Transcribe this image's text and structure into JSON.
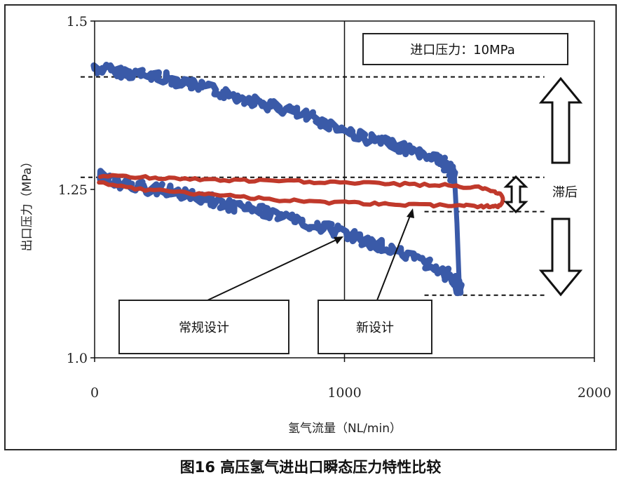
{
  "caption": "图16 高压氢气进出口瞬态压力特性比较",
  "chart_data": {
    "type": "line",
    "title": "",
    "xlabel": "氢气流量（NL/min）",
    "ylabel": "出口压力（MPa）",
    "xlim": [
      0,
      2000
    ],
    "ylim": [
      1.0,
      1.5
    ],
    "x_ticks": [
      {
        "value": 0,
        "label": "0"
      },
      {
        "value": 1000,
        "label": "1000"
      },
      {
        "value": 2000,
        "label": "2000"
      }
    ],
    "y_ticks": [
      {
        "value": 1.0,
        "label": "1.0"
      },
      {
        "value": 1.25,
        "label": "1.25"
      },
      {
        "value": 1.5,
        "label": "1.5"
      }
    ],
    "vertical_gridline_x": 1000,
    "series": [
      {
        "label": "常规设计",
        "color": "#3a5aa8",
        "upper_branch": {
          "x": [
            0,
            100,
            200,
            300,
            400,
            500,
            600,
            700,
            800,
            900,
            1000,
            1100,
            1200,
            1300,
            1380,
            1420,
            1440
          ],
          "y": [
            1.43,
            1.425,
            1.42,
            1.415,
            1.405,
            1.395,
            1.385,
            1.375,
            1.365,
            1.352,
            1.338,
            1.325,
            1.315,
            1.305,
            1.295,
            1.28,
            1.27
          ]
        },
        "lower_branch": {
          "x": [
            1460,
            1450,
            1400,
            1300,
            1200,
            1100,
            1000,
            900,
            800,
            700,
            600,
            500,
            400,
            300,
            200,
            100,
            20
          ],
          "y": [
            1.1,
            1.11,
            1.125,
            1.145,
            1.16,
            1.17,
            1.185,
            1.195,
            1.205,
            1.215,
            1.222,
            1.23,
            1.24,
            1.248,
            1.252,
            1.26,
            1.27
          ]
        },
        "drop_segment": {
          "x": [
            1440,
            1450,
            1460
          ],
          "y": [
            1.27,
            1.2,
            1.1
          ]
        }
      },
      {
        "label": "新设计",
        "color": "#c0392b",
        "upper_branch": {
          "x": [
            20,
            200,
            400,
            600,
            800,
            1000,
            1200,
            1400,
            1550,
            1620
          ],
          "y": [
            1.27,
            1.268,
            1.265,
            1.263,
            1.262,
            1.26,
            1.258,
            1.256,
            1.252,
            1.245
          ]
        },
        "lower_branch": {
          "x": [
            1620,
            1550,
            1400,
            1200,
            1000,
            800,
            600,
            400,
            200,
            20
          ],
          "y": [
            1.225,
            1.225,
            1.226,
            1.228,
            1.23,
            1.233,
            1.238,
            1.244,
            1.25,
            1.26
          ]
        }
      }
    ],
    "reference_lines": [
      {
        "y": 1.417,
        "x_range": [
          0,
          2000
        ]
      },
      {
        "y": 1.268,
        "x_range": [
          0,
          2000
        ]
      },
      {
        "y": 1.217,
        "x_range": [
          1320,
          1800
        ]
      },
      {
        "y": 1.093,
        "x_range": [
          1320,
          1800
        ]
      }
    ],
    "annotations": {
      "inlet_pressure": "进口压力：10MPa",
      "hysteresis": "滞后",
      "conventional_label": "常规设计",
      "new_label": "新设计"
    }
  }
}
